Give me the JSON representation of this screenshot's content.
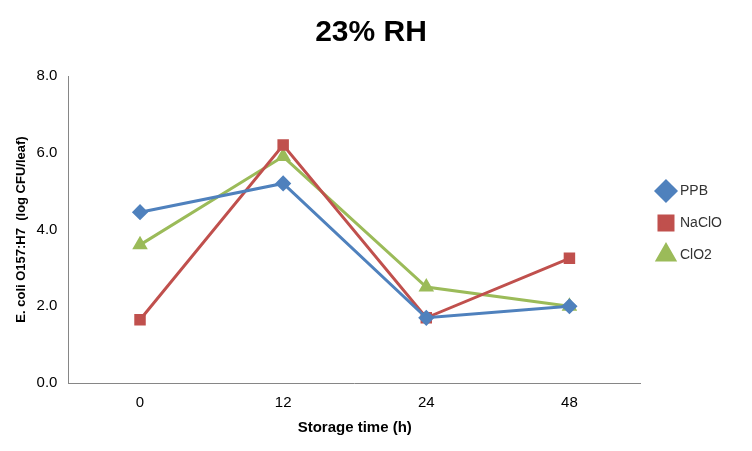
{
  "chart_data": {
    "type": "line",
    "title": "23% RH",
    "x_label": "Storage time (h)",
    "y_label": "E. coli O157:H7  (log CFU/leaf)",
    "categories": [
      "0",
      "12",
      "24",
      "48"
    ],
    "series": [
      {
        "name": "PPB",
        "color": "#4f81bd",
        "marker": "diamond",
        "values": [
          4.45,
          5.2,
          1.7,
          2.0
        ]
      },
      {
        "name": "NaClO",
        "color": "#c0504d",
        "marker": "square",
        "values": [
          1.65,
          6.2,
          1.7,
          3.25
        ]
      },
      {
        "name": "ClO2",
        "color": "#9bbb59",
        "marker": "triangle",
        "values": [
          3.6,
          5.9,
          2.5,
          2.0
        ]
      }
    ],
    "ylim": [
      0,
      8
    ],
    "yticks": [
      {
        "value": 0,
        "label": "0.0"
      },
      {
        "value": 2,
        "label": "2.0"
      },
      {
        "value": 4,
        "label": "4.0"
      },
      {
        "value": 6,
        "label": "6.0"
      },
      {
        "value": 8,
        "label": "8.0"
      }
    ],
    "grid": false,
    "legend": "right"
  }
}
